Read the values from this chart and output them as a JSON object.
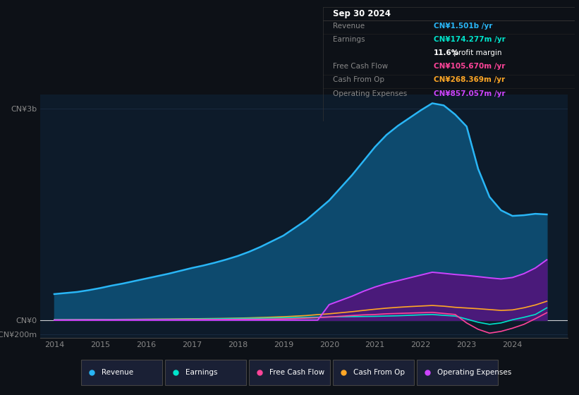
{
  "background_color": "#0d1117",
  "plot_bg_color": "#0d1b2a",
  "title_box": {
    "date": "Sep 30 2024",
    "rows": [
      {
        "label": "Revenue",
        "value": "CN¥1.501b /yr",
        "value_color": "#29b6f6"
      },
      {
        "label": "Earnings",
        "value": "CN¥174.277m /yr",
        "value_color": "#00e5cc"
      },
      {
        "label": "",
        "value": "11.6% profit margin",
        "value_color": "#ffffff"
      },
      {
        "label": "Free Cash Flow",
        "value": "CN¥105.670m /yr",
        "value_color": "#ff4499"
      },
      {
        "label": "Cash From Op",
        "value": "CN¥268.369m /yr",
        "value_color": "#ffa726"
      },
      {
        "label": "Operating Expenses",
        "value": "CN¥857.057m /yr",
        "value_color": "#cc44ff"
      }
    ]
  },
  "years": [
    2014.0,
    2014.25,
    2014.5,
    2014.75,
    2015.0,
    2015.25,
    2015.5,
    2015.75,
    2016.0,
    2016.25,
    2016.5,
    2016.75,
    2017.0,
    2017.25,
    2017.5,
    2017.75,
    2018.0,
    2018.25,
    2018.5,
    2018.75,
    2019.0,
    2019.25,
    2019.5,
    2019.75,
    2020.0,
    2020.25,
    2020.5,
    2020.75,
    2021.0,
    2021.25,
    2021.5,
    2021.75,
    2022.0,
    2022.25,
    2022.5,
    2022.75,
    2023.0,
    2023.25,
    2023.5,
    2023.75,
    2024.0,
    2024.25,
    2024.5,
    2024.75
  ],
  "revenue": [
    370,
    385,
    400,
    425,
    455,
    490,
    520,
    555,
    590,
    625,
    660,
    700,
    740,
    775,
    815,
    860,
    910,
    970,
    1040,
    1120,
    1200,
    1310,
    1420,
    1560,
    1700,
    1880,
    2060,
    2260,
    2460,
    2630,
    2760,
    2870,
    2980,
    3080,
    3050,
    2920,
    2750,
    2150,
    1750,
    1560,
    1480,
    1490,
    1510,
    1501
  ],
  "earnings": [
    5,
    5,
    6,
    6,
    7,
    8,
    9,
    10,
    11,
    12,
    13,
    14,
    15,
    17,
    19,
    21,
    23,
    25,
    27,
    30,
    33,
    36,
    39,
    42,
    45,
    48,
    50,
    52,
    54,
    58,
    62,
    68,
    75,
    80,
    68,
    58,
    15,
    -30,
    -60,
    -40,
    5,
    40,
    80,
    174
  ],
  "free_cash_flow": [
    2,
    2,
    3,
    3,
    4,
    4,
    5,
    5,
    6,
    6,
    7,
    7,
    8,
    9,
    9,
    10,
    11,
    12,
    13,
    15,
    18,
    22,
    28,
    35,
    45,
    55,
    65,
    75,
    80,
    90,
    95,
    100,
    105,
    110,
    95,
    80,
    -40,
    -130,
    -185,
    -160,
    -115,
    -60,
    20,
    105
  ],
  "cash_from_op": [
    5,
    6,
    7,
    8,
    9,
    10,
    11,
    12,
    13,
    14,
    15,
    17,
    19,
    21,
    23,
    25,
    28,
    32,
    37,
    42,
    48,
    56,
    65,
    78,
    90,
    105,
    120,
    138,
    155,
    170,
    182,
    192,
    200,
    208,
    198,
    182,
    172,
    162,
    150,
    138,
    145,
    175,
    215,
    268
  ],
  "operating_expenses": [
    0,
    0,
    0,
    0,
    0,
    0,
    0,
    0,
    0,
    0,
    0,
    0,
    0,
    0,
    0,
    0,
    0,
    0,
    0,
    0,
    0,
    0,
    0,
    0,
    220,
    280,
    340,
    410,
    470,
    520,
    560,
    600,
    640,
    680,
    665,
    648,
    635,
    618,
    600,
    585,
    605,
    660,
    740,
    857
  ],
  "ylim": [
    -250,
    3200
  ],
  "xlim": [
    2013.7,
    2025.2
  ],
  "yticks": [
    -200,
    0,
    3000
  ],
  "ytick_labels": [
    "-CN¥200m",
    "CN¥0",
    "CN¥3b"
  ],
  "xticks": [
    2014,
    2015,
    2016,
    2017,
    2018,
    2019,
    2020,
    2021,
    2022,
    2023,
    2024
  ],
  "revenue_color": "#29b6f6",
  "revenue_fill_color": "#0d4a6e",
  "earnings_color": "#00e5cc",
  "free_cash_flow_color": "#ff4499",
  "cash_from_op_color": "#ffa726",
  "operating_expenses_color": "#cc44ff",
  "operating_expenses_fill_color": "#4a1a7a",
  "legend_items": [
    {
      "label": "Revenue",
      "color": "#29b6f6"
    },
    {
      "label": "Earnings",
      "color": "#00e5cc"
    },
    {
      "label": "Free Cash Flow",
      "color": "#ff4499"
    },
    {
      "label": "Cash From Op",
      "color": "#ffa726"
    },
    {
      "label": "Operating Expenses",
      "color": "#cc44ff"
    }
  ]
}
